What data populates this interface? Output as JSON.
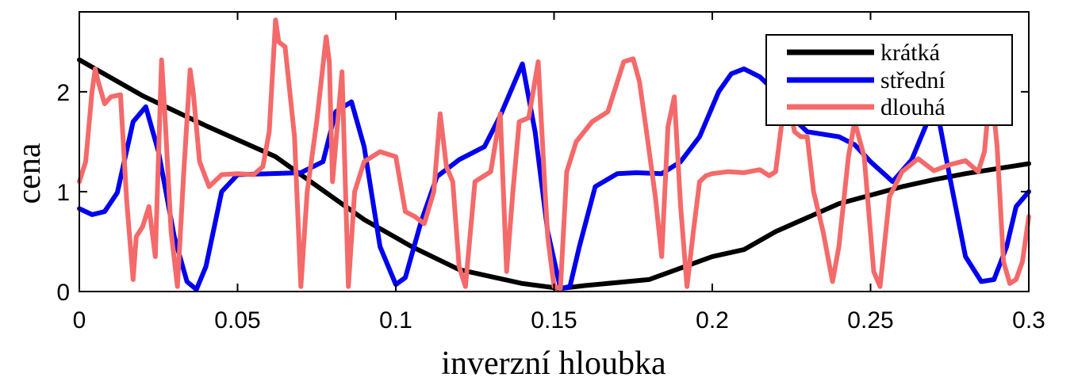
{
  "chart_data": {
    "type": "line",
    "title": "",
    "xlabel": "inverzní hloubka",
    "ylabel": "cena",
    "xlim": [
      0,
      0.3
    ],
    "ylim": [
      0,
      2.8
    ],
    "xticks": [
      0,
      0.05,
      0.1,
      0.15,
      0.2,
      0.25,
      0.3
    ],
    "xtick_labels": [
      "0",
      "0.05",
      "0.1",
      "0.15",
      "0.2",
      "0.25",
      "0.3"
    ],
    "yticks": [
      0,
      1,
      2
    ],
    "ytick_labels": [
      "0",
      "1",
      "2"
    ],
    "grid": false,
    "legend_position": "top-right",
    "series": [
      {
        "name": "krátká",
        "color": "#000000",
        "x": [
          0,
          0.02,
          0.04,
          0.062,
          0.07,
          0.09,
          0.105,
          0.12,
          0.14,
          0.152,
          0.16,
          0.18,
          0.2,
          0.21,
          0.22,
          0.24,
          0.26,
          0.27,
          0.28,
          0.3
        ],
        "y": [
          2.32,
          1.96,
          1.66,
          1.35,
          1.17,
          0.72,
          0.45,
          0.22,
          0.08,
          0.03,
          0.06,
          0.12,
          0.35,
          0.42,
          0.6,
          0.88,
          1.05,
          1.12,
          1.18,
          1.28
        ]
      },
      {
        "name": "střední",
        "color": "#0000ee",
        "x": [
          0,
          0.004,
          0.008,
          0.012,
          0.017,
          0.021,
          0.025,
          0.03,
          0.034,
          0.037,
          0.04,
          0.045,
          0.05,
          0.06,
          0.07,
          0.077,
          0.081,
          0.086,
          0.09,
          0.095,
          0.1,
          0.103,
          0.108,
          0.113,
          0.12,
          0.128,
          0.133,
          0.14,
          0.144,
          0.148,
          0.152,
          0.155,
          0.158,
          0.163,
          0.17,
          0.176,
          0.184,
          0.19,
          0.196,
          0.202,
          0.206,
          0.21,
          0.215,
          0.22,
          0.225,
          0.23,
          0.24,
          0.245,
          0.25,
          0.257,
          0.263,
          0.268,
          0.271,
          0.275,
          0.28,
          0.285,
          0.289,
          0.293,
          0.296,
          0.3
        ],
        "y": [
          0.83,
          0.77,
          0.8,
          0.99,
          1.7,
          1.85,
          1.4,
          0.55,
          0.1,
          0.02,
          0.25,
          1.0,
          1.17,
          1.18,
          1.19,
          1.3,
          1.8,
          1.9,
          1.45,
          0.45,
          0.07,
          0.14,
          0.7,
          1.15,
          1.32,
          1.45,
          1.76,
          2.28,
          1.6,
          0.6,
          0.03,
          0.05,
          0.45,
          1.05,
          1.18,
          1.19,
          1.18,
          1.3,
          1.55,
          2.0,
          2.18,
          2.23,
          2.15,
          2.0,
          1.75,
          1.6,
          1.55,
          1.47,
          1.3,
          1.1,
          1.32,
          1.7,
          1.82,
          1.15,
          0.35,
          0.1,
          0.12,
          0.45,
          0.85,
          1.0
        ]
      },
      {
        "name": "dlouhá",
        "color": "#f46a6a",
        "x": [
          0,
          0.002,
          0.004,
          0.005,
          0.006,
          0.008,
          0.01,
          0.013,
          0.015,
          0.017,
          0.018,
          0.02,
          0.022,
          0.024,
          0.026,
          0.027,
          0.029,
          0.031,
          0.033,
          0.035,
          0.036,
          0.038,
          0.041,
          0.045,
          0.05,
          0.055,
          0.058,
          0.06,
          0.062,
          0.063,
          0.065,
          0.068,
          0.07,
          0.072,
          0.075,
          0.078,
          0.079,
          0.08,
          0.083,
          0.085,
          0.087,
          0.09,
          0.095,
          0.1,
          0.103,
          0.106,
          0.109,
          0.112,
          0.114,
          0.116,
          0.118,
          0.12,
          0.122,
          0.125,
          0.13,
          0.133,
          0.135,
          0.137,
          0.139,
          0.142,
          0.145,
          0.147,
          0.148,
          0.15,
          0.152,
          0.154,
          0.157,
          0.162,
          0.167,
          0.172,
          0.175,
          0.177,
          0.179,
          0.182,
          0.184,
          0.186,
          0.188,
          0.19,
          0.192,
          0.194,
          0.196,
          0.198,
          0.2,
          0.205,
          0.21,
          0.215,
          0.218,
          0.22,
          0.222,
          0.224,
          0.226,
          0.228,
          0.23,
          0.232,
          0.235,
          0.238,
          0.24,
          0.243,
          0.245,
          0.248,
          0.251,
          0.253,
          0.256,
          0.26,
          0.265,
          0.27,
          0.275,
          0.28,
          0.284,
          0.286,
          0.288,
          0.29,
          0.292,
          0.294,
          0.296,
          0.298,
          0.3
        ],
        "y": [
          1.1,
          1.3,
          2.0,
          2.23,
          2.1,
          1.88,
          1.95,
          1.97,
          0.9,
          0.12,
          0.55,
          0.65,
          0.85,
          0.35,
          2.32,
          1.8,
          0.6,
          0.05,
          1.2,
          2.22,
          2.0,
          1.3,
          1.05,
          1.17,
          1.18,
          1.17,
          1.25,
          1.6,
          2.72,
          2.5,
          2.45,
          1.55,
          0.05,
          1.0,
          1.7,
          2.55,
          2.3,
          1.1,
          2.2,
          0.05,
          1.0,
          1.3,
          1.4,
          1.35,
          0.8,
          0.75,
          0.68,
          1.0,
          1.78,
          1.25,
          1.1,
          0.25,
          0.05,
          1.1,
          1.2,
          1.78,
          0.2,
          1.0,
          1.7,
          1.74,
          2.3,
          1.1,
          0.55,
          0.05,
          0.03,
          1.2,
          1.5,
          1.7,
          1.8,
          2.3,
          2.33,
          2.1,
          1.65,
          0.95,
          0.35,
          1.65,
          1.95,
          0.85,
          0.05,
          0.6,
          1.1,
          1.16,
          1.18,
          1.2,
          1.19,
          1.22,
          1.16,
          1.2,
          1.7,
          1.9,
          1.6,
          1.55,
          1.55,
          1.0,
          0.6,
          0.1,
          0.45,
          1.35,
          1.7,
          1.35,
          0.2,
          0.05,
          0.95,
          1.2,
          1.33,
          1.21,
          1.27,
          1.31,
          1.2,
          1.4,
          2.1,
          1.45,
          0.3,
          0.08,
          0.12,
          0.3,
          0.75
        ]
      }
    ]
  }
}
